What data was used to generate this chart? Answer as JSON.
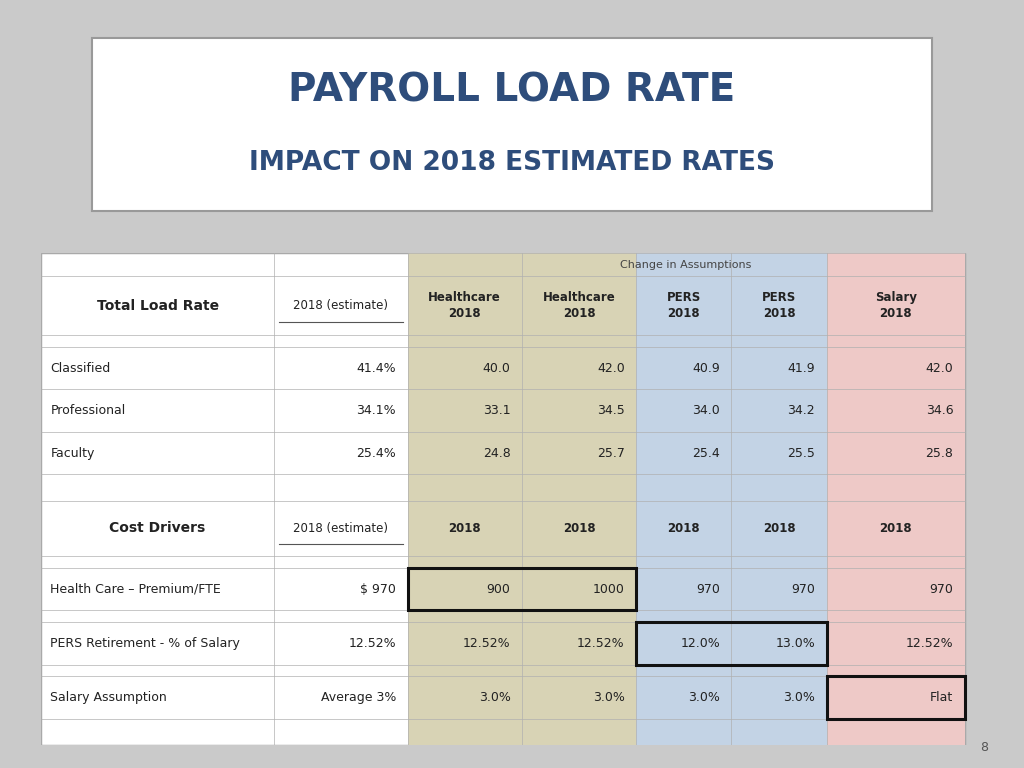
{
  "title_line1": "PAYROLL LOAD RATE",
  "title_line2": "IMPACT ON 2018 ESTIMATED RATES",
  "title_color": "#2E4D7B",
  "bg_color": "#CACACA",
  "page_number": "8",
  "total_load_rows": [
    [
      "Classified",
      "41.4%",
      "40.0",
      "42.0",
      "40.9",
      "41.9",
      "42.0"
    ],
    [
      "Professional",
      "34.1%",
      "33.1",
      "34.5",
      "34.0",
      "34.2",
      "34.6"
    ],
    [
      "Faculty",
      "25.4%",
      "24.8",
      "25.7",
      "25.4",
      "25.5",
      "25.8"
    ]
  ],
  "cost_driver_rows": [
    [
      "Health Care – Premium/FTE",
      "$ 970",
      "900",
      "1000",
      "970",
      "970",
      "970"
    ],
    [
      "PERS Retirement - % of Salary",
      "12.52%",
      "12.52%",
      "12.52%",
      "12.0%",
      "13.0%",
      "12.52%"
    ],
    [
      "Salary Assumption",
      "Average 3%",
      "3.0%",
      "3.0%",
      "3.0%",
      "3.0%",
      "Flat"
    ]
  ],
  "col_bg_tan": "#D8D3B5",
  "col_bg_blue": "#C3D3E5",
  "col_bg_pink": "#EEC9C7",
  "col_bg_white": "#FFFFFF",
  "grid_color": "#B0B0B0",
  "text_dark": "#222222"
}
